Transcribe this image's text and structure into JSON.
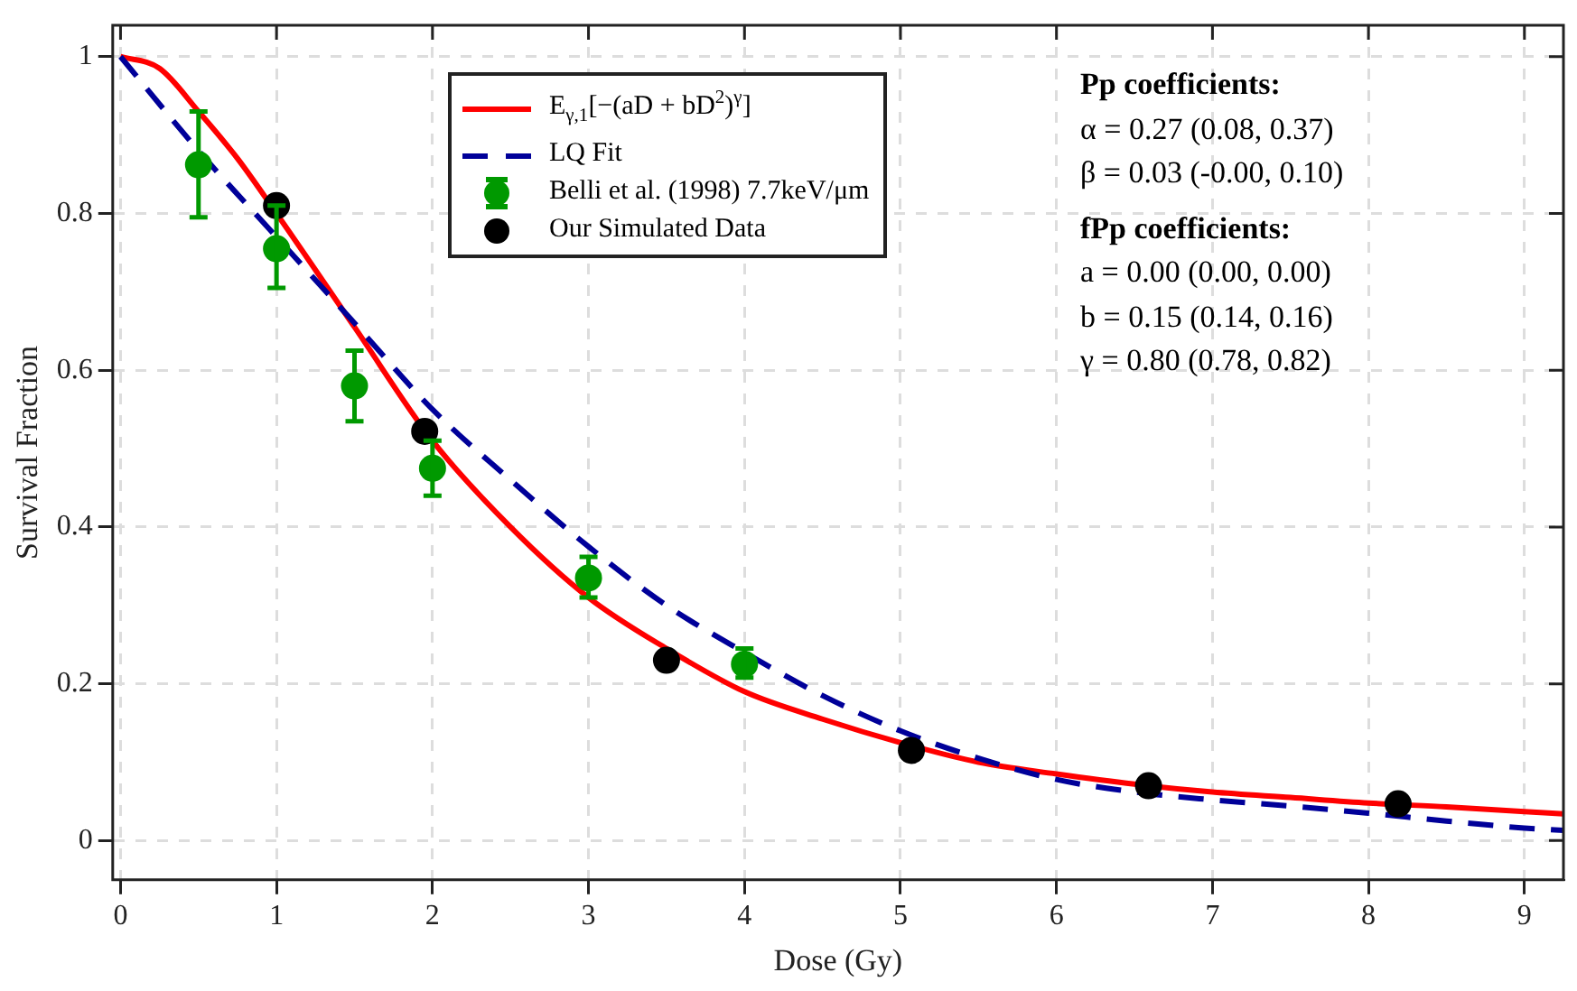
{
  "chart_data": {
    "type": "line",
    "xlabel": "Dose (Gy)",
    "ylabel": "Survival Fraction",
    "xlim": [
      -0.05,
      9.25
    ],
    "ylim": [
      -0.05,
      1.04
    ],
    "xticks": [
      0,
      1,
      2,
      3,
      4,
      5,
      6,
      7,
      8,
      9
    ],
    "yticks": [
      0,
      0.2,
      0.4,
      0.6,
      0.8,
      1
    ],
    "grid": true,
    "legend": "top",
    "annotations": [
      "Pp coefficients:",
      "α = 0.27 (0.08, 0.37)",
      "β = 0.03 (-0.00, 0.10)",
      "fPp coefficients:",
      "a = 0.00 (0.00, 0.00)",
      "b = 0.15 (0.14, 0.16)",
      "γ = 0.80 (0.78, 0.82)"
    ],
    "series": [
      {
        "name": "E$_{γ,1}$[−(aD + bD$^{2}$)$^{γ}$]",
        "color": "#ff0000",
        "line_style": "solid",
        "marker": "none",
        "x": [
          0,
          0.25,
          0.5,
          0.75,
          1,
          1.5,
          2,
          2.5,
          3,
          3.5,
          4,
          4.5,
          5,
          5.5,
          6,
          6.5,
          7,
          7.5,
          8,
          8.5,
          9,
          9.25
        ],
        "values": [
          1,
          0.985,
          0.93,
          0.87,
          0.8,
          0.655,
          0.51,
          0.4,
          0.31,
          0.245,
          0.19,
          0.155,
          0.125,
          0.1,
          0.085,
          0.072,
          0.062,
          0.055,
          0.048,
          0.043,
          0.037,
          0.034
        ]
      },
      {
        "name": "LQ Fit",
        "color": "#000099",
        "line_style": "dashed",
        "marker": "none",
        "x": [
          0,
          0.5,
          1,
          1.5,
          2,
          2.5,
          3,
          3.5,
          4,
          4.5,
          5,
          5.5,
          6,
          6.5,
          7,
          7.5,
          8,
          8.5,
          9,
          9.25
        ],
        "values": [
          1,
          0.88,
          0.77,
          0.66,
          0.55,
          0.46,
          0.375,
          0.3,
          0.24,
          0.185,
          0.14,
          0.105,
          0.078,
          0.062,
          0.052,
          0.044,
          0.035,
          0.025,
          0.016,
          0.013
        ]
      },
      {
        "name": "Belli et al. (1998) 7.7keV/μm",
        "type": "scatter",
        "color": "#009900",
        "marker": "circle",
        "x": [
          0.5,
          1,
          1.5,
          2,
          3,
          4
        ],
        "values": [
          0.862,
          0.755,
          0.58,
          0.475,
          0.335,
          0.225
        ],
        "errors": [
          [
            0.795,
            0.93
          ],
          [
            0.705,
            0.81
          ],
          [
            0.535,
            0.625
          ],
          [
            0.44,
            0.51
          ],
          [
            0.31,
            0.362
          ],
          [
            0.208,
            0.245
          ]
        ]
      },
      {
        "name": "Our Simulated Data",
        "type": "scatter",
        "color": "#000000",
        "marker": "circle",
        "x": [
          1,
          1.95,
          3.5,
          5.07,
          6.59,
          8.19
        ],
        "values": [
          0.81,
          0.522,
          0.23,
          0.115,
          0.07,
          0.047
        ]
      }
    ]
  }
}
